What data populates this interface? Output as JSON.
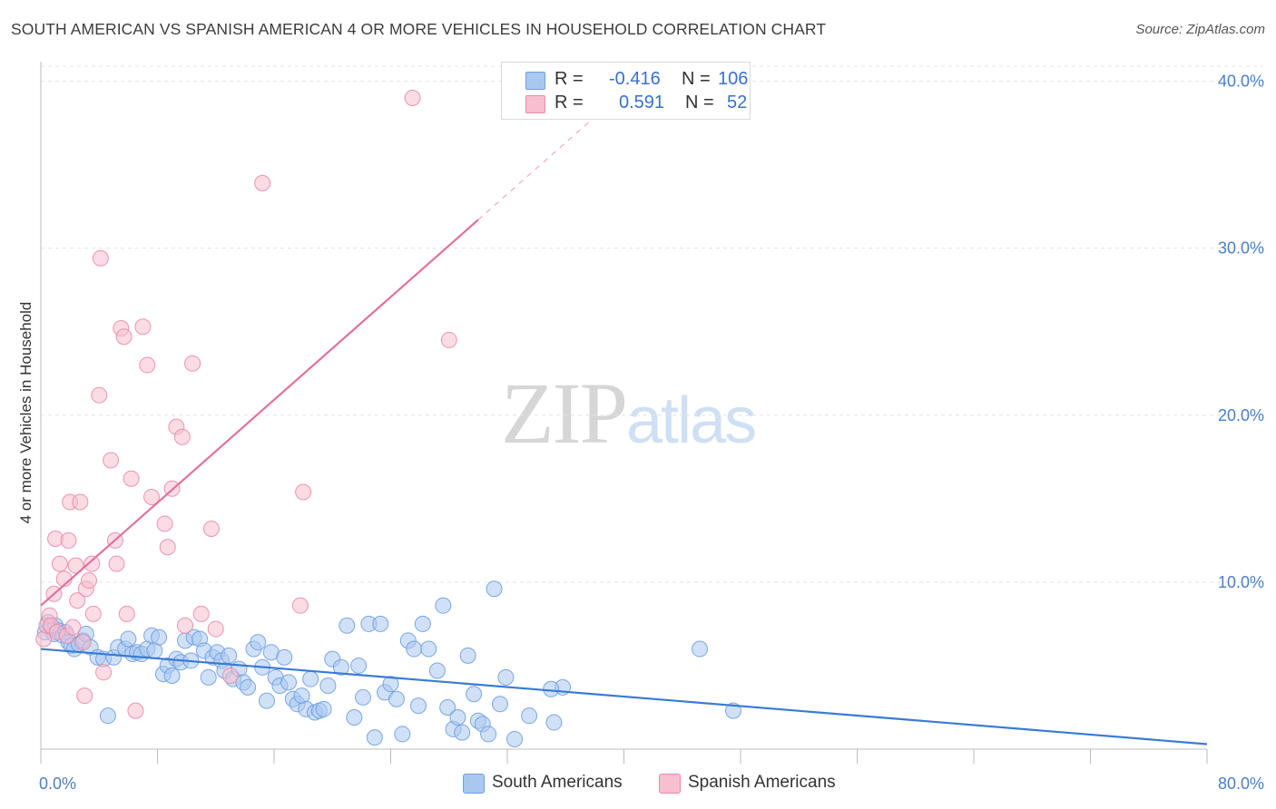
{
  "title": "SOUTH AMERICAN VS SPANISH AMERICAN 4 OR MORE VEHICLES IN HOUSEHOLD CORRELATION CHART",
  "source": "Source: ZipAtlas.com",
  "watermark": {
    "zip": "ZIP",
    "atlas": "atlas"
  },
  "legend": {
    "rows": [
      {
        "r_label": "R =",
        "r_value": "-0.416",
        "n_label": "N =",
        "n_value": "106",
        "color": "#a9c8f0",
        "border": "#6e9fe0"
      },
      {
        "r_label": "R =",
        "r_value": "0.591",
        "n_label": "N =",
        "n_value": "52",
        "color": "#f7bfd0",
        "border": "#e98aa7"
      }
    ]
  },
  "bottom_legend": [
    {
      "label": "South Americans",
      "color": "#a9c8f0",
      "border": "#6e9fe0"
    },
    {
      "label": "Spanish Americans",
      "color": "#f7bfd0",
      "border": "#e98aa7"
    }
  ],
  "chart_data": {
    "type": "scatter",
    "title": "SOUTH AMERICAN VS SPANISH AMERICAN 4 OR MORE VEHICLES IN HOUSEHOLD CORRELATION CHART",
    "xlabel": "",
    "ylabel": "4 or more Vehicles in Household",
    "xlim": [
      0,
      80
    ],
    "ylim": [
      0,
      40.9
    ],
    "x_tick_labels": [
      "0.0%",
      "80.0%"
    ],
    "y_ticks": [
      10,
      20,
      30,
      40
    ],
    "y_tick_labels": [
      "10.0%",
      "20.0%",
      "30.0%",
      "40.0%"
    ],
    "grid": true,
    "series": [
      {
        "name": "South Americans",
        "color": "#6e9fe0",
        "fill": "#a9c8f0",
        "points": [
          [
            0.3,
            7.0
          ],
          [
            0.5,
            7.6
          ],
          [
            0.7,
            7.3
          ],
          [
            0.9,
            6.9
          ],
          [
            1.0,
            7.4
          ],
          [
            1.2,
            7.1
          ],
          [
            1.5,
            6.8
          ],
          [
            1.7,
            7.0
          ],
          [
            1.9,
            6.4
          ],
          [
            2.1,
            6.2
          ],
          [
            2.3,
            6.0
          ],
          [
            2.6,
            6.3
          ],
          [
            2.9,
            6.5
          ],
          [
            3.1,
            6.9
          ],
          [
            3.4,
            6.1
          ],
          [
            3.9,
            5.5
          ],
          [
            4.3,
            5.4
          ],
          [
            4.6,
            2.0
          ],
          [
            5.0,
            5.5
          ],
          [
            5.3,
            6.1
          ],
          [
            5.8,
            6.0
          ],
          [
            6.0,
            6.6
          ],
          [
            6.3,
            5.7
          ],
          [
            6.6,
            5.8
          ],
          [
            6.9,
            5.7
          ],
          [
            7.3,
            6.0
          ],
          [
            7.6,
            6.8
          ],
          [
            7.8,
            5.9
          ],
          [
            8.1,
            6.7
          ],
          [
            8.4,
            4.5
          ],
          [
            8.7,
            5.0
          ],
          [
            9.0,
            4.4
          ],
          [
            9.3,
            5.4
          ],
          [
            9.6,
            5.2
          ],
          [
            9.9,
            6.5
          ],
          [
            10.3,
            5.3
          ],
          [
            10.5,
            6.7
          ],
          [
            10.9,
            6.6
          ],
          [
            11.2,
            5.9
          ],
          [
            11.5,
            4.3
          ],
          [
            11.8,
            5.5
          ],
          [
            12.1,
            5.8
          ],
          [
            12.4,
            5.3
          ],
          [
            12.6,
            4.7
          ],
          [
            12.9,
            5.6
          ],
          [
            13.2,
            4.2
          ],
          [
            13.6,
            4.8
          ],
          [
            13.9,
            4.0
          ],
          [
            14.2,
            3.7
          ],
          [
            14.6,
            6.0
          ],
          [
            14.9,
            6.4
          ],
          [
            15.2,
            4.9
          ],
          [
            15.5,
            2.9
          ],
          [
            15.8,
            5.8
          ],
          [
            16.1,
            4.3
          ],
          [
            16.4,
            3.8
          ],
          [
            16.7,
            5.5
          ],
          [
            17.0,
            4.0
          ],
          [
            17.3,
            3.0
          ],
          [
            17.6,
            2.7
          ],
          [
            17.9,
            3.2
          ],
          [
            18.2,
            2.4
          ],
          [
            18.5,
            4.2
          ],
          [
            18.8,
            2.2
          ],
          [
            19.1,
            2.3
          ],
          [
            19.4,
            2.4
          ],
          [
            19.7,
            3.8
          ],
          [
            20.0,
            5.4
          ],
          [
            20.6,
            4.9
          ],
          [
            21.0,
            7.4
          ],
          [
            21.5,
            1.9
          ],
          [
            21.8,
            5.0
          ],
          [
            22.1,
            3.1
          ],
          [
            22.5,
            7.5
          ],
          [
            22.9,
            0.7
          ],
          [
            23.3,
            7.5
          ],
          [
            23.6,
            3.4
          ],
          [
            24.0,
            3.9
          ],
          [
            24.4,
            3.0
          ],
          [
            24.8,
            0.9
          ],
          [
            25.2,
            6.5
          ],
          [
            25.6,
            6.0
          ],
          [
            25.9,
            2.6
          ],
          [
            26.2,
            7.5
          ],
          [
            26.6,
            6.0
          ],
          [
            27.2,
            4.7
          ],
          [
            27.6,
            8.6
          ],
          [
            27.9,
            2.5
          ],
          [
            28.3,
            1.2
          ],
          [
            28.6,
            1.9
          ],
          [
            28.9,
            1.0
          ],
          [
            29.3,
            5.6
          ],
          [
            29.7,
            3.3
          ],
          [
            30.0,
            1.7
          ],
          [
            30.3,
            1.5
          ],
          [
            30.7,
            0.9
          ],
          [
            31.1,
            9.6
          ],
          [
            31.5,
            2.7
          ],
          [
            31.9,
            4.3
          ],
          [
            32.5,
            0.6
          ],
          [
            33.5,
            2.0
          ],
          [
            35.2,
            1.6
          ],
          [
            35.8,
            3.7
          ],
          [
            35.0,
            3.6
          ],
          [
            47.5,
            2.3
          ],
          [
            45.2,
            6.0
          ]
        ]
      },
      {
        "name": "Spanish Americans",
        "color": "#e98aa7",
        "fill": "#f7bfd0",
        "points": [
          [
            0.2,
            6.6
          ],
          [
            0.4,
            7.4
          ],
          [
            0.6,
            8.0
          ],
          [
            0.7,
            7.4
          ],
          [
            0.9,
            9.3
          ],
          [
            1.0,
            12.6
          ],
          [
            1.1,
            7.0
          ],
          [
            1.3,
            11.1
          ],
          [
            1.6,
            10.2
          ],
          [
            1.8,
            6.8
          ],
          [
            1.9,
            12.5
          ],
          [
            2.0,
            14.8
          ],
          [
            2.2,
            7.3
          ],
          [
            2.4,
            11.0
          ],
          [
            2.5,
            8.9
          ],
          [
            2.7,
            14.8
          ],
          [
            2.9,
            6.4
          ],
          [
            3.1,
            9.6
          ],
          [
            3.3,
            10.1
          ],
          [
            3.5,
            11.1
          ],
          [
            3.6,
            8.1
          ],
          [
            4.0,
            21.2
          ],
          [
            4.1,
            29.4
          ],
          [
            4.3,
            4.6
          ],
          [
            4.8,
            17.3
          ],
          [
            5.1,
            12.5
          ],
          [
            5.2,
            11.1
          ],
          [
            5.5,
            25.2
          ],
          [
            5.7,
            24.7
          ],
          [
            5.9,
            8.1
          ],
          [
            6.2,
            16.2
          ],
          [
            6.5,
            2.3
          ],
          [
            7.0,
            25.3
          ],
          [
            7.3,
            23.0
          ],
          [
            7.6,
            15.1
          ],
          [
            8.5,
            13.5
          ],
          [
            8.7,
            12.1
          ],
          [
            9.0,
            15.6
          ],
          [
            9.3,
            19.3
          ],
          [
            9.7,
            18.7
          ],
          [
            9.9,
            7.4
          ],
          [
            10.4,
            23.1
          ],
          [
            11.0,
            8.1
          ],
          [
            11.7,
            13.2
          ],
          [
            12.0,
            7.2
          ],
          [
            13.0,
            4.4
          ],
          [
            15.2,
            33.9
          ],
          [
            17.8,
            8.6
          ],
          [
            18.0,
            15.4
          ],
          [
            25.5,
            39.0
          ],
          [
            28.0,
            24.5
          ],
          [
            3.0,
            3.2
          ]
        ]
      }
    ],
    "trend_lines": [
      {
        "series": "South Americans",
        "x": [
          0,
          80
        ],
        "y": [
          6.0,
          0.3
        ]
      },
      {
        "series": "Spanish Americans",
        "x": [
          0,
          30
        ],
        "y": [
          8.6,
          31.7
        ],
        "dashed_extension_x": [
          30,
          40
        ]
      }
    ]
  }
}
